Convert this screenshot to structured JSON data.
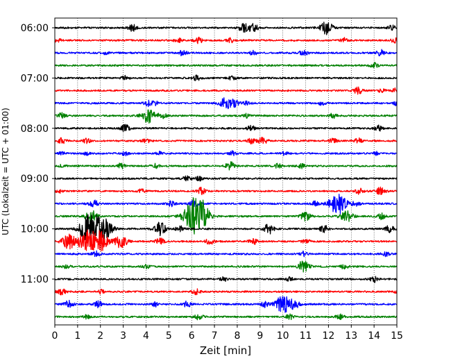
{
  "chart_data": {
    "type": "line",
    "title": "",
    "xlabel": "Zeit  [min]",
    "ylabel": "UTC (Lokalzeit = UTC + 01:00)",
    "xlim": [
      0,
      15
    ],
    "x_ticks": [
      0,
      1,
      2,
      3,
      4,
      5,
      6,
      7,
      8,
      9,
      10,
      11,
      12,
      13,
      14,
      15
    ],
    "x_tick_labels": [
      "0",
      "1",
      "2",
      "3",
      "4",
      "5",
      "6",
      "7",
      "8",
      "9",
      "10",
      "11",
      "12",
      "13",
      "14",
      "15"
    ],
    "y_tick_labels": [
      "06:00",
      "07:00",
      "08:00",
      "09:00",
      "10:00",
      "11:00"
    ],
    "grid": "vertical dotted lines at each minute",
    "trace_interval_minutes": 15,
    "trace_colors": [
      "#000000",
      "#ff0000",
      "#0000ff",
      "#008000"
    ],
    "traces": [
      {
        "start": "06:00",
        "color": "#000000",
        "bursts": [
          [
            3.4,
            0.45
          ],
          [
            8.3,
            0.6
          ],
          [
            8.7,
            0.55
          ],
          [
            11.9,
            0.9
          ],
          [
            14.8,
            0.35
          ]
        ]
      },
      {
        "start": "06:15",
        "color": "#ff0000",
        "bursts": [
          [
            0.1,
            0.3
          ],
          [
            5.4,
            0.3
          ],
          [
            6.3,
            0.4
          ],
          [
            7.7,
            0.3
          ],
          [
            12.7,
            0.3
          ],
          [
            14.9,
            0.3
          ]
        ]
      },
      {
        "start": "06:30",
        "color": "#0000ff",
        "bursts": [
          [
            2.2,
            0.2
          ],
          [
            5.6,
            0.4
          ],
          [
            8.7,
            0.3
          ],
          [
            10.9,
            0.4
          ],
          [
            14.3,
            0.4
          ]
        ]
      },
      {
        "start": "06:45",
        "color": "#008000",
        "bursts": [
          [
            14.0,
            0.35
          ]
        ]
      },
      {
        "start": "07:00",
        "color": "#000000",
        "bursts": [
          [
            3.1,
            0.3
          ],
          [
            6.2,
            0.35
          ],
          [
            7.8,
            0.3
          ]
        ]
      },
      {
        "start": "07:15",
        "color": "#ff0000",
        "bursts": [
          [
            13.3,
            0.45
          ],
          [
            14.3,
            0.3
          ],
          [
            15.0,
            0.4
          ]
        ]
      },
      {
        "start": "07:30",
        "color": "#0000ff",
        "bursts": [
          [
            4.1,
            0.4
          ],
          [
            4.4,
            0.3
          ],
          [
            7.5,
            0.9
          ],
          [
            7.9,
            0.4
          ],
          [
            8.4,
            0.25
          ],
          [
            11.7,
            0.25
          ],
          [
            15.0,
            0.3
          ]
        ]
      },
      {
        "start": "07:45",
        "color": "#008000",
        "bursts": [
          [
            0.3,
            0.35
          ],
          [
            4.1,
            1.0
          ],
          [
            4.7,
            0.4
          ],
          [
            8.4,
            0.3
          ],
          [
            12.2,
            0.35
          ]
        ]
      },
      {
        "start": "08:00",
        "color": "#000000",
        "bursts": [
          [
            3.1,
            0.5
          ],
          [
            8.6,
            0.4
          ],
          [
            14.2,
            0.35
          ]
        ]
      },
      {
        "start": "08:15",
        "color": "#ff0000",
        "bursts": [
          [
            0.3,
            0.4
          ],
          [
            1.4,
            0.3
          ],
          [
            4.0,
            0.3
          ],
          [
            8.6,
            0.35
          ],
          [
            9.1,
            0.55
          ],
          [
            12.2,
            0.35
          ],
          [
            13.3,
            0.35
          ]
        ]
      },
      {
        "start": "08:30",
        "color": "#0000ff",
        "bursts": [
          [
            0.3,
            0.2
          ],
          [
            1.4,
            0.2
          ],
          [
            3.1,
            0.3
          ],
          [
            4.6,
            0.25
          ],
          [
            7.8,
            0.3
          ],
          [
            10.1,
            0.25
          ],
          [
            14.1,
            0.2
          ]
        ]
      },
      {
        "start": "08:45",
        "color": "#008000",
        "bursts": [
          [
            0.3,
            0.2
          ],
          [
            2.9,
            0.35
          ],
          [
            4.4,
            0.3
          ],
          [
            7.7,
            0.55
          ],
          [
            9.8,
            0.3
          ],
          [
            10.8,
            0.3
          ]
        ]
      },
      {
        "start": "09:00",
        "color": "#000000",
        "bursts": [
          [
            5.8,
            0.35
          ],
          [
            6.3,
            0.3
          ]
        ]
      },
      {
        "start": "09:15",
        "color": "#ff0000",
        "bursts": [
          [
            0.2,
            0.2
          ],
          [
            3.8,
            0.3
          ],
          [
            6.4,
            0.5
          ],
          [
            13.4,
            0.45
          ],
          [
            14.3,
            0.55
          ]
        ]
      },
      {
        "start": "09:30",
        "color": "#0000ff",
        "bursts": [
          [
            1.7,
            0.5
          ],
          [
            5.1,
            0.35
          ],
          [
            6.1,
            0.45
          ],
          [
            11.4,
            0.3
          ],
          [
            12.4,
            1.5
          ],
          [
            13.2,
            0.35
          ]
        ]
      },
      {
        "start": "09:45",
        "color": "#008000",
        "bursts": [
          [
            1.6,
            0.8
          ],
          [
            6.1,
            2.0
          ],
          [
            6.4,
            1.4
          ],
          [
            11.0,
            0.6
          ],
          [
            12.8,
            0.9
          ],
          [
            14.3,
            0.4
          ]
        ]
      },
      {
        "start": "10:00",
        "color": "#000000",
        "bursts": [
          [
            1.3,
            0.8
          ],
          [
            1.7,
            2.0
          ],
          [
            2.3,
            0.9
          ],
          [
            4.6,
            0.9
          ],
          [
            5.5,
            0.4
          ],
          [
            9.4,
            0.7
          ],
          [
            11.8,
            0.5
          ],
          [
            14.7,
            0.5
          ]
        ]
      },
      {
        "start": "10:15",
        "color": "#ff0000",
        "bursts": [
          [
            0.6,
            1.0
          ],
          [
            1.4,
            1.5
          ],
          [
            2.0,
            1.3
          ],
          [
            2.9,
            0.9
          ],
          [
            4.6,
            0.45
          ],
          [
            6.8,
            0.4
          ],
          [
            8.7,
            0.4
          ],
          [
            11.0,
            0.35
          ]
        ]
      },
      {
        "start": "10:30",
        "color": "#0000ff",
        "bursts": [
          [
            1.8,
            0.4
          ],
          [
            10.9,
            0.3
          ],
          [
            14.5,
            0.3
          ]
        ]
      },
      {
        "start": "10:45",
        "color": "#008000",
        "bursts": [
          [
            0.5,
            0.25
          ],
          [
            4.0,
            0.3
          ],
          [
            10.9,
            0.8
          ],
          [
            12.7,
            0.3
          ]
        ]
      },
      {
        "start": "11:00",
        "color": "#000000",
        "bursts": [
          [
            7.4,
            0.3
          ],
          [
            10.3,
            0.25
          ],
          [
            14.0,
            0.4
          ]
        ]
      },
      {
        "start": "11:15",
        "color": "#ff0000",
        "bursts": [
          [
            0.3,
            0.4
          ],
          [
            2.0,
            0.3
          ],
          [
            6.2,
            0.35
          ],
          [
            15.0,
            0.3
          ]
        ]
      },
      {
        "start": "11:30",
        "color": "#0000ff",
        "bursts": [
          [
            0.6,
            0.5
          ],
          [
            1.9,
            0.45
          ],
          [
            4.4,
            0.3
          ],
          [
            5.8,
            0.4
          ],
          [
            9.2,
            0.4
          ],
          [
            10.0,
            1.2
          ],
          [
            10.5,
            0.6
          ]
        ]
      },
      {
        "start": "11:45",
        "color": "#008000",
        "bursts": [
          [
            1.4,
            0.25
          ],
          [
            6.3,
            0.4
          ],
          [
            10.3,
            0.35
          ],
          [
            12.5,
            0.35
          ]
        ]
      }
    ]
  }
}
